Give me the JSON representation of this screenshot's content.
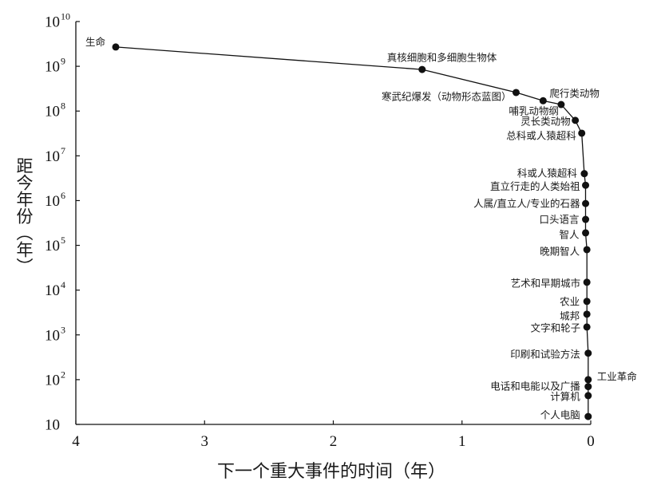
{
  "chart_data": {
    "type": "line",
    "xlabel": "下一个重大事件的时间（年）",
    "ylabel": "距今年份（年）",
    "xlim": [
      4,
      0
    ],
    "ylim": [
      10,
      10000000000.0
    ],
    "yscale": "log",
    "grid": false,
    "line_color": "#111111",
    "xticks": [
      {
        "value": 4,
        "label": "4"
      },
      {
        "value": 3,
        "label": "3"
      },
      {
        "value": 2,
        "label": "2"
      },
      {
        "value": 1,
        "label": "1"
      },
      {
        "value": 0,
        "label": "0"
      }
    ],
    "yticks": [
      {
        "value": 10000000000.0,
        "base": "10",
        "exp": "10"
      },
      {
        "value": 1000000000.0,
        "base": "10",
        "exp": "9"
      },
      {
        "value": 100000000.0,
        "base": "10",
        "exp": "8"
      },
      {
        "value": 10000000.0,
        "base": "10",
        "exp": "7"
      },
      {
        "value": 1000000.0,
        "base": "10",
        "exp": "6"
      },
      {
        "value": 100000.0,
        "base": "10",
        "exp": "5"
      },
      {
        "value": 10000.0,
        "base": "10",
        "exp": "4"
      },
      {
        "value": 1000.0,
        "base": "10",
        "exp": "3"
      },
      {
        "value": 100.0,
        "base": "10",
        "exp": "2"
      },
      {
        "value": 10,
        "base": "10"
      }
    ],
    "points": [
      {
        "label": "生命",
        "x": 3.69,
        "y": 2700000000.0
      },
      {
        "label": "真核细胞和多细胞生物体",
        "x": 1.31,
        "y": 850000000.0
      },
      {
        "label": "寒武纪爆发（动物形态蓝图）",
        "x": 0.58,
        "y": 260000000.0
      },
      {
        "label": "爬行类动物",
        "x": 0.37,
        "y": 170000000.0
      },
      {
        "label": "哺乳动物纲",
        "x": 0.23,
        "y": 140000000.0
      },
      {
        "label": "灵长类动物",
        "x": 0.12,
        "y": 62000000.0
      },
      {
        "label": "总科或人猿超科",
        "x": 0.07,
        "y": 32000000.0
      },
      {
        "label": "科或人猿超科",
        "x": 0.05,
        "y": 4000000.0
      },
      {
        "label": "直立行走的人类始祖",
        "x": 0.04,
        "y": 2200000.0
      },
      {
        "label": "人属/直立人/专业的石器",
        "x": 0.04,
        "y": 860000.0
      },
      {
        "label": "口头语言",
        "x": 0.04,
        "y": 380000.0
      },
      {
        "label": "智人",
        "x": 0.04,
        "y": 190000.0
      },
      {
        "label": "晚期智人",
        "x": 0.03,
        "y": 80000.0
      },
      {
        "label": "艺术和早期城市",
        "x": 0.03,
        "y": 15000.0
      },
      {
        "label": "农业",
        "x": 0.03,
        "y": 5600.0
      },
      {
        "label": "城邦",
        "x": 0.03,
        "y": 2900.0
      },
      {
        "label": "文字和轮子",
        "x": 0.03,
        "y": 1500.0
      },
      {
        "label": "印刷和试验方法",
        "x": 0.02,
        "y": 390
      },
      {
        "label": "工业革命",
        "x": 0.02,
        "y": 100
      },
      {
        "label": "电话和电能以及广播",
        "x": 0.02,
        "y": 70
      },
      {
        "label": "计算机",
        "x": 0.02,
        "y": 44
      },
      {
        "label": "个人电脑",
        "x": 0.02,
        "y": 15
      }
    ]
  }
}
